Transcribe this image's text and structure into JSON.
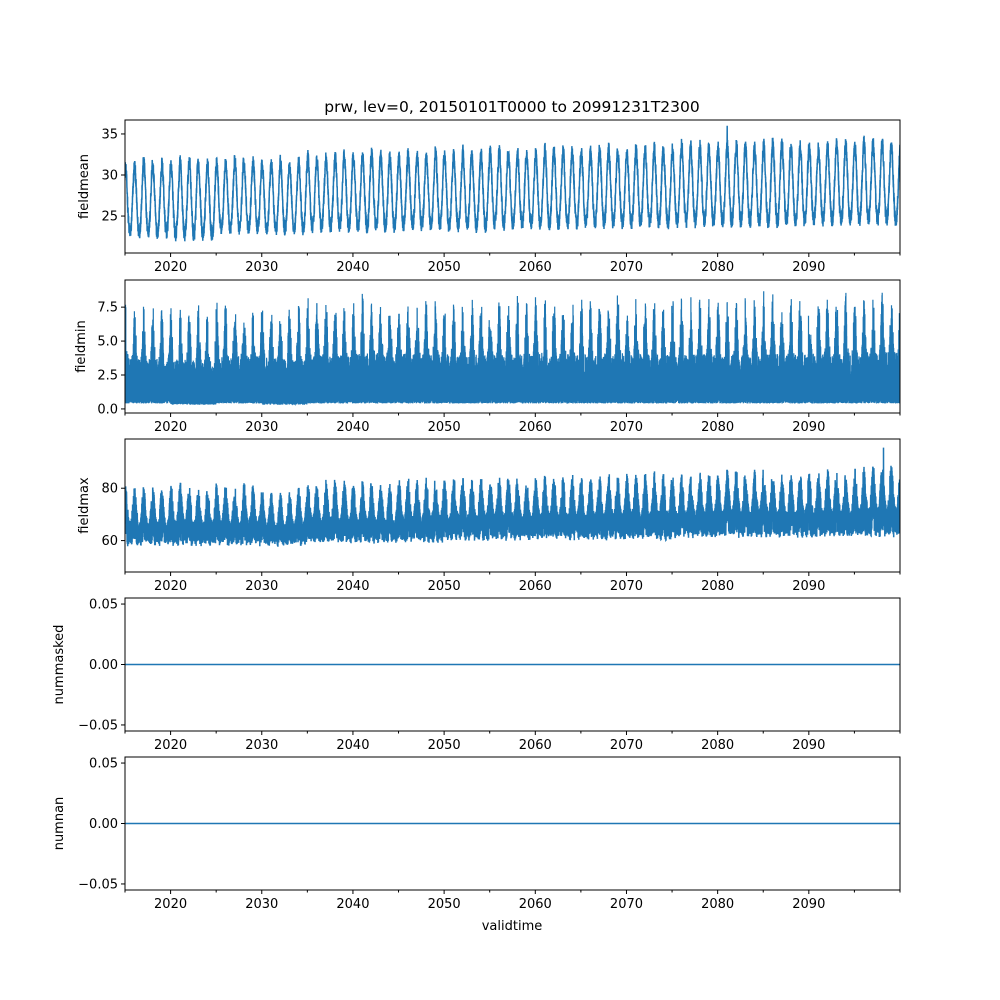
{
  "chart_data": [
    {
      "type": "line",
      "title": "prw, lev=0, 20150101T0000 to 20991231T2300",
      "ylabel": "fieldmean",
      "xlabel": "",
      "xlim": [
        2015.0,
        2100.0
      ],
      "ylim": [
        20.5,
        36.7
      ],
      "yticks": [
        25,
        30,
        35
      ],
      "ytick_labels": [
        "25",
        "30",
        "35"
      ],
      "color": "#1f77b4",
      "style": "seasonal",
      "envelope_bins_start_years": [
        2015,
        2020,
        2025,
        2030,
        2035,
        2040,
        2045,
        2050,
        2055,
        2060,
        2065,
        2070,
        2075,
        2080,
        2085,
        2090,
        2095
      ],
      "envelope_high": [
        32.3,
        32.5,
        32.5,
        32.3,
        33.0,
        33.2,
        33.5,
        33.5,
        33.6,
        33.8,
        34.0,
        34.0,
        34.2,
        34.5,
        34.5,
        34.6,
        34.5
      ],
      "envelope_low": [
        22.3,
        22.0,
        22.8,
        22.7,
        23.0,
        23.0,
        23.2,
        23.0,
        23.3,
        23.3,
        23.5,
        23.4,
        23.6,
        23.6,
        23.6,
        23.8,
        23.8
      ],
      "peaks_max": 36.0
    },
    {
      "type": "line",
      "ylabel": "fieldmin",
      "xlim": [
        2015.0,
        2100.0
      ],
      "ylim": [
        -0.3,
        9.5
      ],
      "yticks": [
        0.0,
        2.5,
        5.0,
        7.5
      ],
      "ytick_labels": [
        "0.0",
        "2.5",
        "5.0",
        "7.5"
      ],
      "color": "#1f77b4",
      "style": "dense",
      "envelope_bins_start_years": [
        2015,
        2020,
        2025,
        2030,
        2035,
        2040,
        2045,
        2050,
        2055,
        2060,
        2065,
        2070,
        2075,
        2080,
        2085,
        2090,
        2095
      ],
      "envelope_high": [
        7.8,
        7.7,
        8.2,
        8.0,
        8.3,
        8.6,
        8.5,
        8.3,
        8.4,
        8.5,
        8.6,
        8.5,
        8.5,
        8.4,
        8.6,
        8.6,
        8.8
      ],
      "envelope_low": [
        0.4,
        0.3,
        0.4,
        0.3,
        0.4,
        0.4,
        0.4,
        0.4,
        0.4,
        0.4,
        0.4,
        0.4,
        0.4,
        0.4,
        0.4,
        0.4,
        0.4
      ]
    },
    {
      "type": "line",
      "ylabel": "fieldmax",
      "xlim": [
        2015.0,
        2100.0
      ],
      "ylim": [
        48,
        98.8
      ],
      "yticks": [
        60,
        80
      ],
      "ytick_labels": [
        "60",
        "80"
      ],
      "color": "#1f77b4",
      "style": "noisy",
      "envelope_bins_start_years": [
        2015,
        2020,
        2025,
        2030,
        2035,
        2040,
        2045,
        2050,
        2055,
        2060,
        2065,
        2070,
        2075,
        2080,
        2085,
        2090,
        2095
      ],
      "envelope_high": [
        80,
        81,
        81,
        79,
        82,
        82,
        84,
        84,
        84,
        85,
        85,
        86,
        85,
        86,
        86,
        86,
        88
      ],
      "envelope_low": [
        56,
        56,
        56,
        56,
        57,
        57,
        57,
        58,
        58,
        58,
        58,
        58,
        59,
        59,
        59,
        59,
        59
      ],
      "peaks_max": 95.5
    },
    {
      "type": "line",
      "ylabel": "nummasked",
      "xlim": [
        2015.0,
        2100.0
      ],
      "ylim": [
        -0.055,
        0.055
      ],
      "yticks": [
        -0.05,
        0.0,
        0.05
      ],
      "ytick_labels": [
        "−0.05",
        "0.00",
        "0.05"
      ],
      "color": "#1f77b4",
      "style": "constant",
      "constant_value": 0.0
    },
    {
      "type": "line",
      "ylabel": "numnan",
      "xlabel": "validtime",
      "xlim": [
        2015.0,
        2100.0
      ],
      "ylim": [
        -0.055,
        0.055
      ],
      "yticks": [
        -0.05,
        0.0,
        0.05
      ],
      "ytick_labels": [
        "−0.05",
        "0.00",
        "0.05"
      ],
      "color": "#1f77b4",
      "style": "constant",
      "constant_value": 0.0
    }
  ],
  "x_major_ticks": [
    2020,
    2030,
    2040,
    2050,
    2060,
    2070,
    2080,
    2090
  ],
  "x_major_tick_labels": [
    "2020",
    "2030",
    "2040",
    "2050",
    "2060",
    "2070",
    "2080",
    "2090"
  ],
  "x_minor_ticks": [
    2015,
    2025,
    2035,
    2045,
    2055,
    2065,
    2075,
    2085,
    2095,
    2100
  ]
}
